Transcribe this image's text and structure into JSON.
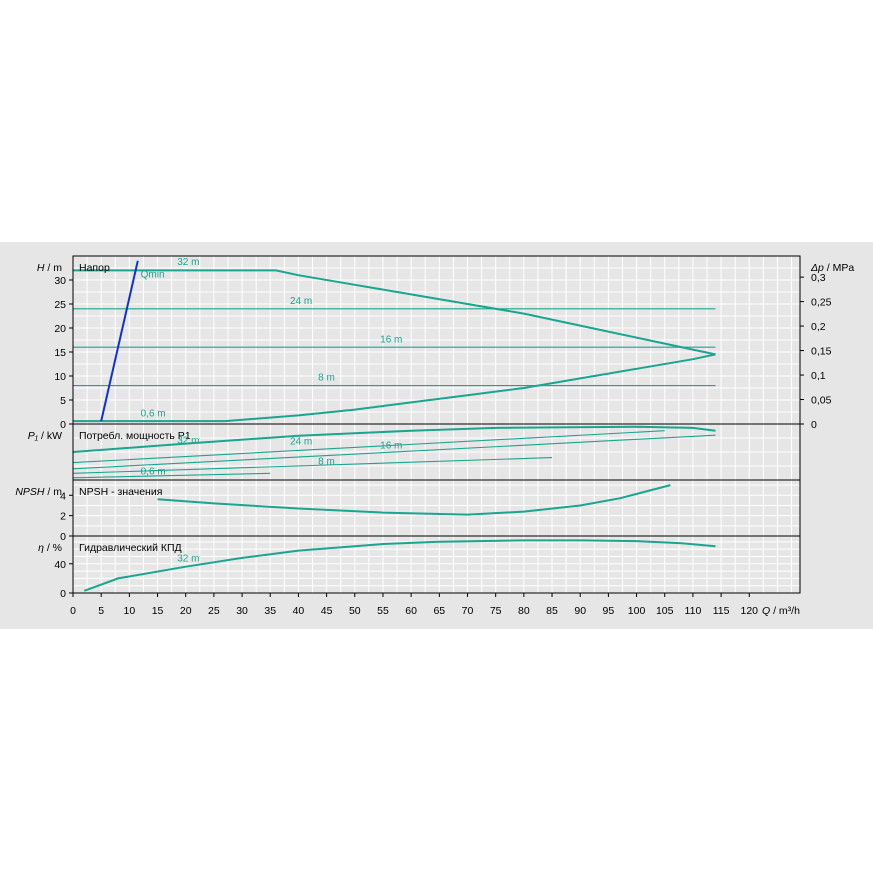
{
  "chart_data": {
    "type": "line",
    "x": {
      "label_symbol": "Q",
      "label_unit": "m³/h",
      "range": [
        0,
        129
      ],
      "ticks": [
        0,
        5,
        10,
        15,
        20,
        25,
        30,
        35,
        40,
        45,
        50,
        55,
        60,
        65,
        70,
        75,
        80,
        85,
        90,
        95,
        100,
        105,
        110,
        115,
        120
      ]
    },
    "panels": [
      {
        "id": "head",
        "label_symbol": "H",
        "label_unit": "m",
        "title": "Напор",
        "ylim": [
          0,
          35
        ],
        "yticks": [
          0,
          5,
          10,
          15,
          20,
          25,
          30
        ],
        "right_axis": {
          "label_symbol": "Δp",
          "label_unit": "MPa",
          "ticks": [
            "0",
            "0,05",
            "0,1",
            "0,15",
            "0,2",
            "0,25",
            "0,3"
          ],
          "tick_values": [
            0,
            5.1,
            10.2,
            15.3,
            20.4,
            25.5,
            30.6
          ]
        },
        "series": [
          {
            "name": "32 m",
            "points": [
              [
                0,
                32
              ],
              [
                36,
                32
              ],
              [
                40,
                31
              ],
              [
                50,
                29
              ],
              [
                60,
                27
              ],
              [
                70,
                25
              ],
              [
                80,
                23
              ],
              [
                90,
                20.5
              ],
              [
                100,
                18
              ],
              [
                110,
                15.5
              ],
              [
                114,
                14.5
              ]
            ]
          },
          {
            "name": "24 m",
            "points": [
              [
                0,
                24
              ],
              [
                114,
                24
              ]
            ]
          },
          {
            "name": "16 m",
            "points": [
              [
                0,
                16
              ],
              [
                114,
                16
              ]
            ]
          },
          {
            "name": "8 m",
            "points": [
              [
                0,
                8
              ],
              [
                114,
                8
              ]
            ]
          },
          {
            "name": "0,6 m",
            "points": [
              [
                0,
                0.6
              ],
              [
                27,
                0.6
              ],
              [
                40,
                1.8
              ],
              [
                50,
                3
              ],
              [
                60,
                4.5
              ],
              [
                70,
                6
              ],
              [
                80,
                7.5
              ],
              [
                90,
                9.5
              ],
              [
                100,
                11.5
              ],
              [
                110,
                13.5
              ],
              [
                114,
                14.5
              ]
            ]
          }
        ],
        "qmin": {
          "name": "Qmin",
          "points": [
            [
              5,
              0.6
            ],
            [
              11.5,
              34
            ]
          ]
        },
        "labels": [
          {
            "text": "32 m",
            "x": 18.5,
            "y": 33.1
          },
          {
            "text": "24 m",
            "x": 38.5,
            "y": 25
          },
          {
            "text": "16 m",
            "x": 54.5,
            "y": 17
          },
          {
            "text": "8 m",
            "x": 43.5,
            "y": 9.1
          },
          {
            "text": "0,6 m",
            "x": 12,
            "y": 1.6
          },
          {
            "text": "Qmin",
            "x": 12,
            "y": 30.5
          }
        ]
      },
      {
        "id": "power",
        "label_symbol": "P₁",
        "label_unit": "kW",
        "title": "Потребл. мощность P1",
        "ylim": [
          0,
          1
        ],
        "series": [
          {
            "name": "32 m",
            "points": [
              [
                0,
                0.5
              ],
              [
                20,
                0.65
              ],
              [
                40,
                0.79
              ],
              [
                60,
                0.88
              ],
              [
                75,
                0.93
              ],
              [
                100,
                0.95
              ],
              [
                110,
                0.93
              ],
              [
                114,
                0.88
              ]
            ]
          },
          {
            "name": "24 m",
            "points": [
              [
                0,
                0.31
              ],
              [
                105,
                0.88
              ]
            ]
          },
          {
            "name": "16 m",
            "points": [
              [
                0,
                0.2
              ],
              [
                114,
                0.8
              ]
            ]
          },
          {
            "name": "8 m",
            "points": [
              [
                0,
                0.12
              ],
              [
                85,
                0.4
              ]
            ]
          },
          {
            "name": "0,6 m",
            "points": [
              [
                0,
                0.04
              ],
              [
                35,
                0.12
              ]
            ]
          }
        ],
        "labels": [
          {
            "text": "32 m",
            "x": 18.5,
            "y": 0.65
          },
          {
            "text": "24 m",
            "x": 38.5,
            "y": 0.63
          },
          {
            "text": "16 m",
            "x": 54.5,
            "y": 0.56
          },
          {
            "text": "8 m",
            "x": 43.5,
            "y": 0.28
          },
          {
            "text": "0,6 m",
            "x": 12,
            "y": 0.1
          }
        ]
      },
      {
        "id": "npsh",
        "label_symbol": "NPSH",
        "label_unit": "m",
        "title": "NPSH - значения",
        "ylim": [
          0,
          5.5
        ],
        "yticks": [
          0,
          2,
          4
        ],
        "series": [
          {
            "name": "NPSH",
            "points": [
              [
                15,
                3.6
              ],
              [
                25,
                3.2
              ],
              [
                40,
                2.7
              ],
              [
                55,
                2.3
              ],
              [
                70,
                2.1
              ],
              [
                80,
                2.4
              ],
              [
                90,
                3
              ],
              [
                97,
                3.7
              ],
              [
                106,
                5
              ]
            ]
          }
        ]
      },
      {
        "id": "efficiency",
        "label_symbol": "η",
        "label_unit": "%",
        "title": "Гидравлический КПД",
        "ylim": [
          0,
          78
        ],
        "yticks": [
          0,
          40
        ],
        "series": [
          {
            "name": "32 m",
            "points": [
              [
                2,
                3
              ],
              [
                8,
                20
              ],
              [
                20,
                36
              ],
              [
                30,
                48
              ],
              [
                40,
                58
              ],
              [
                55,
                67
              ],
              [
                65,
                70
              ],
              [
                80,
                72
              ],
              [
                90,
                72
              ],
              [
                100,
                71
              ],
              [
                108,
                68
              ],
              [
                114,
                64
              ]
            ]
          }
        ],
        "labels": [
          {
            "text": "32 m",
            "x": 18.5,
            "y": 43
          }
        ]
      }
    ]
  }
}
